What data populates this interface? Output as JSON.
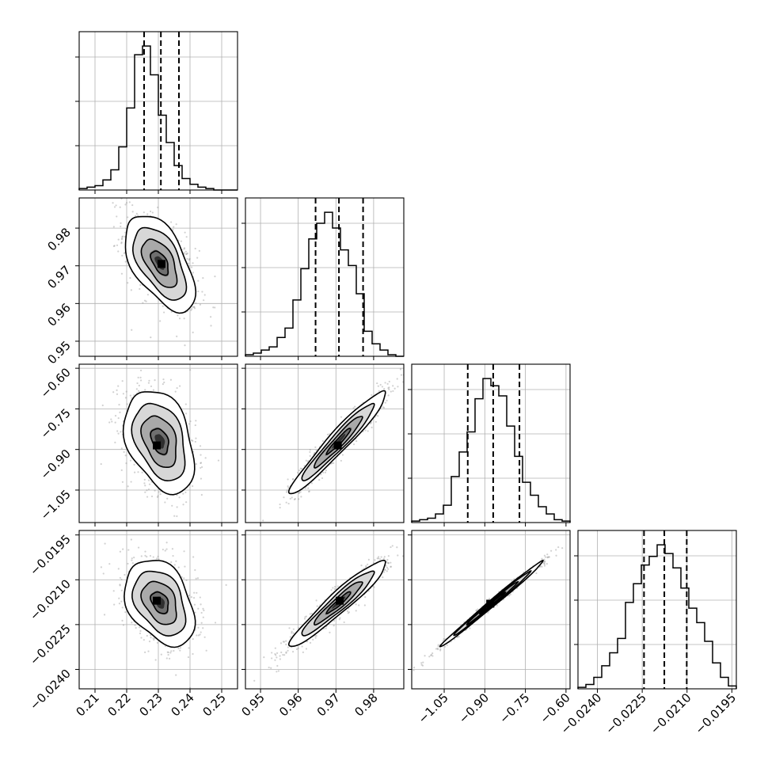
{
  "chart_data": {
    "type": "corner",
    "grid": true,
    "title": "",
    "parameters": [
      {
        "index": 0,
        "range": [
          0.205,
          0.255
        ],
        "ticks": [
          0.21,
          0.22,
          0.23,
          0.24,
          0.25
        ],
        "tick_labels": [
          "0.21",
          "0.22",
          "0.23",
          "0.24",
          "0.25"
        ],
        "quantiles": [
          0.2255,
          0.2308,
          0.2365
        ],
        "histogram": {
          "bin_edges_start": 0.205,
          "bin_width": 0.0025,
          "counts": [
            1,
            2,
            3,
            7,
            14,
            30,
            57,
            94,
            100,
            80,
            52,
            33,
            17,
            8,
            4,
            2,
            1,
            0,
            0,
            0
          ]
        }
      },
      {
        "index": 1,
        "range": [
          0.946,
          0.988
        ],
        "ticks": [
          0.95,
          0.96,
          0.97,
          0.98
        ],
        "tick_labels": [
          "0.95",
          "0.96",
          "0.97",
          "0.98"
        ],
        "quantiles": [
          0.9646,
          0.9708,
          0.9772
        ],
        "histogram": {
          "bin_edges_start": 0.946,
          "bin_width": 0.0021,
          "counts": [
            1,
            2,
            4,
            6,
            12,
            18,
            36,
            56,
            75,
            85,
            92,
            82,
            68,
            58,
            40,
            16,
            8,
            4,
            1,
            0
          ]
        }
      },
      {
        "index": 2,
        "range": [
          -1.17,
          -0.585
        ],
        "ticks": [
          -1.05,
          -0.9,
          -0.75,
          -0.6
        ],
        "tick_labels": [
          "−1.05",
          "−0.90",
          "−0.75",
          "−0.60"
        ],
        "quantiles": [
          -0.963,
          -0.869,
          -0.772
        ],
        "histogram": {
          "bin_edges_start": -1.17,
          "bin_width": 0.02925,
          "counts": [
            1,
            2,
            3,
            6,
            12,
            32,
            49,
            63,
            86,
            100,
            95,
            88,
            67,
            46,
            28,
            19,
            11,
            6,
            2,
            1
          ]
        }
      },
      {
        "index": 3,
        "range": [
          -0.02465,
          -0.01935
        ],
        "ticks": [
          -0.024,
          -0.0225,
          -0.021,
          -0.0195
        ],
        "tick_labels": [
          "−0.0240",
          "−0.0225",
          "−0.0210",
          "−0.0195"
        ],
        "quantiles": [
          -0.02244,
          -0.02176,
          -0.02101
        ],
        "histogram": {
          "bin_edges_start": -0.02465,
          "bin_width": 0.000265,
          "counts": [
            1,
            3,
            8,
            16,
            25,
            35,
            60,
            73,
            86,
            92,
            100,
            94,
            84,
            70,
            56,
            46,
            33,
            18,
            8,
            2
          ]
        }
      }
    ],
    "pairs": [
      {
        "x": 0,
        "y": 1,
        "center": [
          0.2305,
          0.9708
        ],
        "sd": [
          0.0055,
          0.0064
        ],
        "rho": -0.55,
        "peak": [
          0.231,
          0.9705
        ]
      },
      {
        "x": 0,
        "y": 2,
        "center": [
          0.2305,
          -0.869
        ],
        "sd": [
          0.0055,
          0.095
        ],
        "rho": -0.35,
        "peak": [
          0.2295,
          -0.885
        ]
      },
      {
        "x": 1,
        "y": 2,
        "center": [
          0.9708,
          -0.869
        ],
        "sd": [
          0.0064,
          0.095
        ],
        "rho": 0.96,
        "peak": [
          0.9705,
          -0.885
        ]
      },
      {
        "x": 0,
        "y": 3,
        "center": [
          0.2305,
          -0.02176
        ],
        "sd": [
          0.0055,
          0.00072
        ],
        "rho": -0.35,
        "peak": [
          0.2295,
          -0.0217
        ]
      },
      {
        "x": 1,
        "y": 3,
        "center": [
          0.9708,
          -0.02176
        ],
        "sd": [
          0.0064,
          0.00072
        ],
        "rho": 0.95,
        "peak": [
          0.971,
          -0.0217
        ]
      },
      {
        "x": 2,
        "y": 3,
        "center": [
          -0.869,
          -0.02176
        ],
        "sd": [
          0.095,
          0.00072
        ],
        "rho": 0.995,
        "peak": [
          -0.88,
          -0.0218
        ]
      }
    ],
    "contour_levels_sigma": [
      0.5,
      1.0,
      1.5,
      2.0
    ]
  }
}
